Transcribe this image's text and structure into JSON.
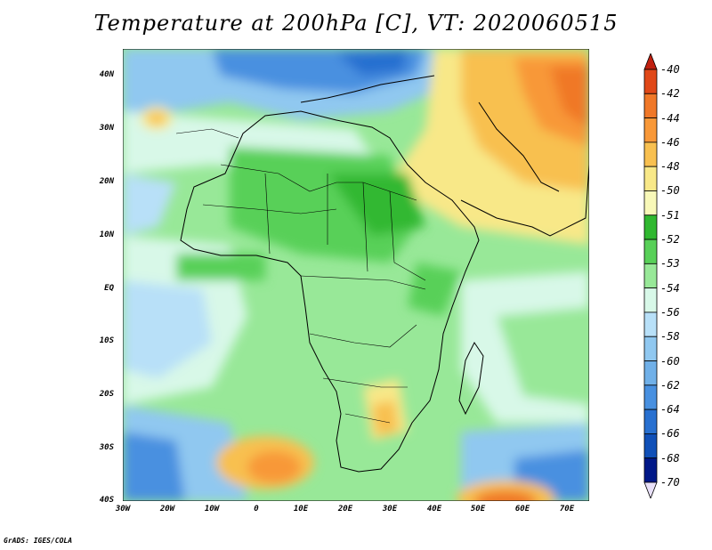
{
  "title": "Temperature at 200hPa [C], VT: 2020060515",
  "footer": "GrADS: IGES/COLA",
  "map": {
    "y_ticks": [
      "40N",
      "30N",
      "20N",
      "10N",
      "EQ",
      "10S",
      "20S",
      "30S",
      "40S"
    ],
    "x_ticks": [
      "30W",
      "20W",
      "10W",
      "0",
      "10E",
      "20E",
      "30E",
      "40E",
      "50E",
      "60E",
      "70E"
    ],
    "region": "Africa"
  },
  "legend": {
    "levels": [
      "-40",
      "-42",
      "-44",
      "-46",
      "-48",
      "-50",
      "-51",
      "-52",
      "-53",
      "-54",
      "-56",
      "-58",
      "-60",
      "-62",
      "-64",
      "-66",
      "-68",
      "-70"
    ],
    "colors": [
      "#c02010",
      "#e04818",
      "#f07828",
      "#f89838",
      "#f8c050",
      "#f8e888",
      "#f8f8b8",
      "#30b830",
      "#58d058",
      "#98e898",
      "#d8f8e8",
      "#b8e0f8",
      "#90c8f0",
      "#70b0e8",
      "#4890e0",
      "#2870d0",
      "#1050b8",
      "#001888",
      "#e8e0f8"
    ]
  },
  "chart_data": {
    "type": "heatmap",
    "title": "Temperature at 200hPa [C], VT: 2020060515",
    "units": "C",
    "level": "200hPa",
    "valid_time": "2020060515",
    "x_range": [
      "30W",
      "70E"
    ],
    "y_range": [
      "40S",
      "40N"
    ]
  }
}
